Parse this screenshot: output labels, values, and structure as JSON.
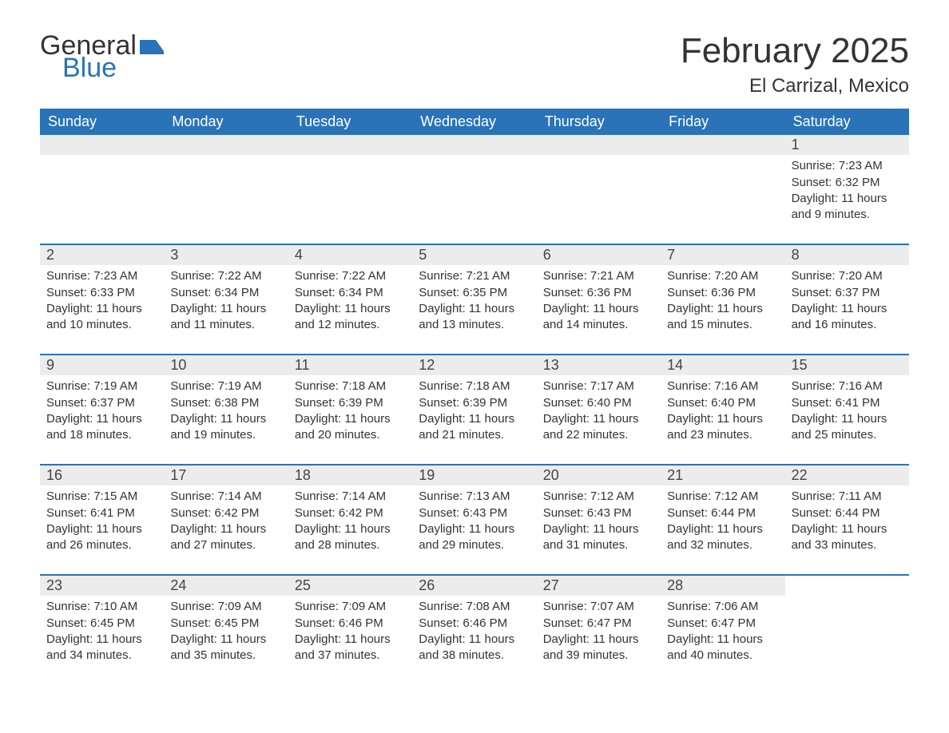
{
  "logo": {
    "word1": "General",
    "word2": "Blue",
    "icon_color": "#2a73b8",
    "text1_color": "#333333",
    "text2_color": "#2a73b8"
  },
  "header": {
    "title": "February 2025",
    "location": "El Carrizal, Mexico"
  },
  "colors": {
    "header_bar": "#2a73b8",
    "header_text": "#ffffff",
    "day_bar_bg": "#ececec",
    "week_divider": "#2a73b8",
    "body_text": "#333333",
    "background": "#ffffff"
  },
  "dow": [
    "Sunday",
    "Monday",
    "Tuesday",
    "Wednesday",
    "Thursday",
    "Friday",
    "Saturday"
  ],
  "weeks": [
    [
      {
        "empty": true
      },
      {
        "empty": true
      },
      {
        "empty": true
      },
      {
        "empty": true
      },
      {
        "empty": true
      },
      {
        "empty": true
      },
      {
        "num": "1",
        "sunrise": "Sunrise: 7:23 AM",
        "sunset": "Sunset: 6:32 PM",
        "day1": "Daylight: 11 hours",
        "day2": "and 9 minutes."
      }
    ],
    [
      {
        "num": "2",
        "sunrise": "Sunrise: 7:23 AM",
        "sunset": "Sunset: 6:33 PM",
        "day1": "Daylight: 11 hours",
        "day2": "and 10 minutes."
      },
      {
        "num": "3",
        "sunrise": "Sunrise: 7:22 AM",
        "sunset": "Sunset: 6:34 PM",
        "day1": "Daylight: 11 hours",
        "day2": "and 11 minutes."
      },
      {
        "num": "4",
        "sunrise": "Sunrise: 7:22 AM",
        "sunset": "Sunset: 6:34 PM",
        "day1": "Daylight: 11 hours",
        "day2": "and 12 minutes."
      },
      {
        "num": "5",
        "sunrise": "Sunrise: 7:21 AM",
        "sunset": "Sunset: 6:35 PM",
        "day1": "Daylight: 11 hours",
        "day2": "and 13 minutes."
      },
      {
        "num": "6",
        "sunrise": "Sunrise: 7:21 AM",
        "sunset": "Sunset: 6:36 PM",
        "day1": "Daylight: 11 hours",
        "day2": "and 14 minutes."
      },
      {
        "num": "7",
        "sunrise": "Sunrise: 7:20 AM",
        "sunset": "Sunset: 6:36 PM",
        "day1": "Daylight: 11 hours",
        "day2": "and 15 minutes."
      },
      {
        "num": "8",
        "sunrise": "Sunrise: 7:20 AM",
        "sunset": "Sunset: 6:37 PM",
        "day1": "Daylight: 11 hours",
        "day2": "and 16 minutes."
      }
    ],
    [
      {
        "num": "9",
        "sunrise": "Sunrise: 7:19 AM",
        "sunset": "Sunset: 6:37 PM",
        "day1": "Daylight: 11 hours",
        "day2": "and 18 minutes."
      },
      {
        "num": "10",
        "sunrise": "Sunrise: 7:19 AM",
        "sunset": "Sunset: 6:38 PM",
        "day1": "Daylight: 11 hours",
        "day2": "and 19 minutes."
      },
      {
        "num": "11",
        "sunrise": "Sunrise: 7:18 AM",
        "sunset": "Sunset: 6:39 PM",
        "day1": "Daylight: 11 hours",
        "day2": "and 20 minutes."
      },
      {
        "num": "12",
        "sunrise": "Sunrise: 7:18 AM",
        "sunset": "Sunset: 6:39 PM",
        "day1": "Daylight: 11 hours",
        "day2": "and 21 minutes."
      },
      {
        "num": "13",
        "sunrise": "Sunrise: 7:17 AM",
        "sunset": "Sunset: 6:40 PM",
        "day1": "Daylight: 11 hours",
        "day2": "and 22 minutes."
      },
      {
        "num": "14",
        "sunrise": "Sunrise: 7:16 AM",
        "sunset": "Sunset: 6:40 PM",
        "day1": "Daylight: 11 hours",
        "day2": "and 23 minutes."
      },
      {
        "num": "15",
        "sunrise": "Sunrise: 7:16 AM",
        "sunset": "Sunset: 6:41 PM",
        "day1": "Daylight: 11 hours",
        "day2": "and 25 minutes."
      }
    ],
    [
      {
        "num": "16",
        "sunrise": "Sunrise: 7:15 AM",
        "sunset": "Sunset: 6:41 PM",
        "day1": "Daylight: 11 hours",
        "day2": "and 26 minutes."
      },
      {
        "num": "17",
        "sunrise": "Sunrise: 7:14 AM",
        "sunset": "Sunset: 6:42 PM",
        "day1": "Daylight: 11 hours",
        "day2": "and 27 minutes."
      },
      {
        "num": "18",
        "sunrise": "Sunrise: 7:14 AM",
        "sunset": "Sunset: 6:42 PM",
        "day1": "Daylight: 11 hours",
        "day2": "and 28 minutes."
      },
      {
        "num": "19",
        "sunrise": "Sunrise: 7:13 AM",
        "sunset": "Sunset: 6:43 PM",
        "day1": "Daylight: 11 hours",
        "day2": "and 29 minutes."
      },
      {
        "num": "20",
        "sunrise": "Sunrise: 7:12 AM",
        "sunset": "Sunset: 6:43 PM",
        "day1": "Daylight: 11 hours",
        "day2": "and 31 minutes."
      },
      {
        "num": "21",
        "sunrise": "Sunrise: 7:12 AM",
        "sunset": "Sunset: 6:44 PM",
        "day1": "Daylight: 11 hours",
        "day2": "and 32 minutes."
      },
      {
        "num": "22",
        "sunrise": "Sunrise: 7:11 AM",
        "sunset": "Sunset: 6:44 PM",
        "day1": "Daylight: 11 hours",
        "day2": "and 33 minutes."
      }
    ],
    [
      {
        "num": "23",
        "sunrise": "Sunrise: 7:10 AM",
        "sunset": "Sunset: 6:45 PM",
        "day1": "Daylight: 11 hours",
        "day2": "and 34 minutes."
      },
      {
        "num": "24",
        "sunrise": "Sunrise: 7:09 AM",
        "sunset": "Sunset: 6:45 PM",
        "day1": "Daylight: 11 hours",
        "day2": "and 35 minutes."
      },
      {
        "num": "25",
        "sunrise": "Sunrise: 7:09 AM",
        "sunset": "Sunset: 6:46 PM",
        "day1": "Daylight: 11 hours",
        "day2": "and 37 minutes."
      },
      {
        "num": "26",
        "sunrise": "Sunrise: 7:08 AM",
        "sunset": "Sunset: 6:46 PM",
        "day1": "Daylight: 11 hours",
        "day2": "and 38 minutes."
      },
      {
        "num": "27",
        "sunrise": "Sunrise: 7:07 AM",
        "sunset": "Sunset: 6:47 PM",
        "day1": "Daylight: 11 hours",
        "day2": "and 39 minutes."
      },
      {
        "num": "28",
        "sunrise": "Sunrise: 7:06 AM",
        "sunset": "Sunset: 6:47 PM",
        "day1": "Daylight: 11 hours",
        "day2": "and 40 minutes."
      },
      {
        "empty": true,
        "noBar": true
      }
    ]
  ]
}
